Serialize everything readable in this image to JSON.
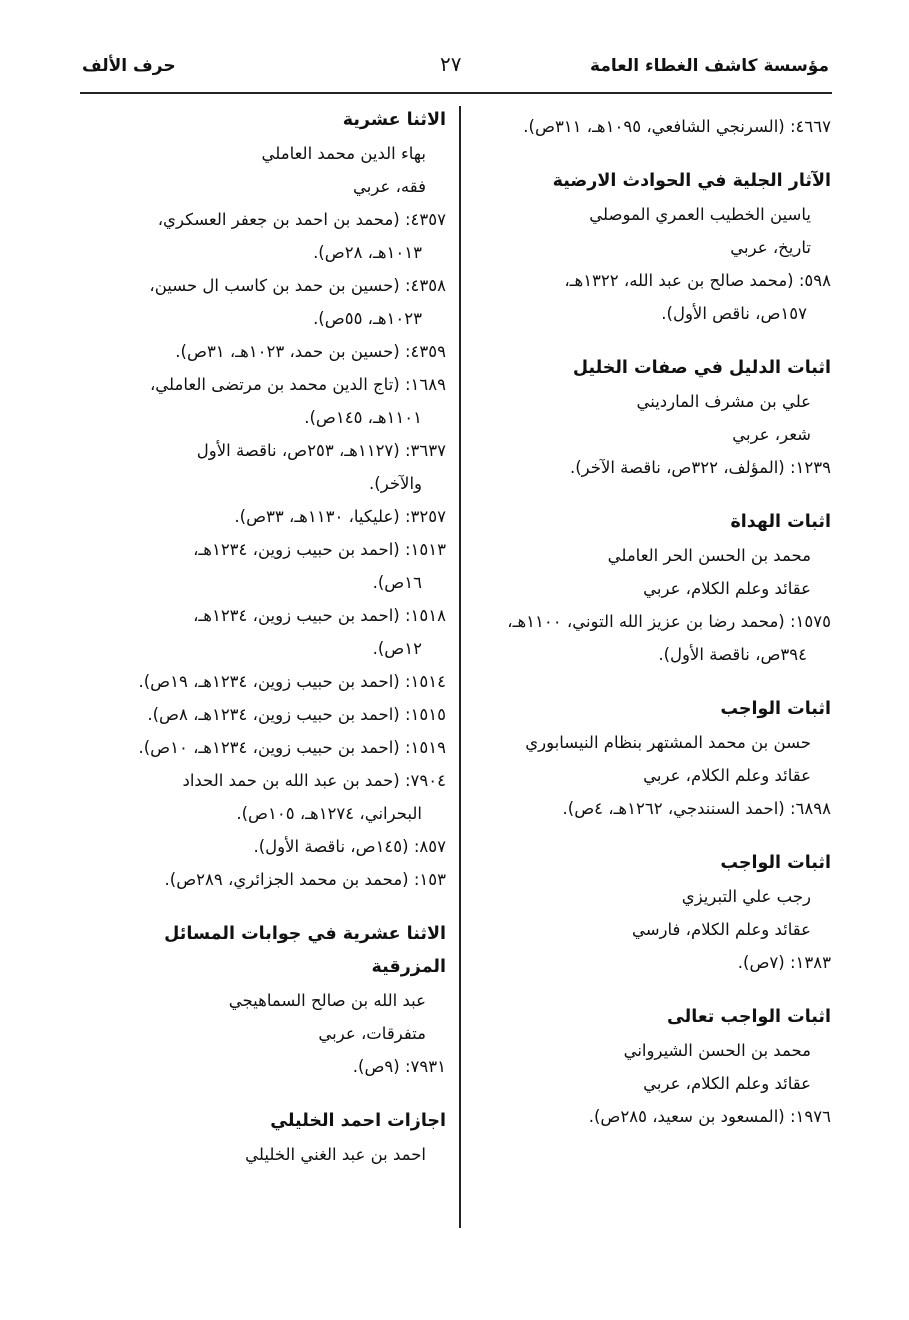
{
  "header": {
    "publisher": "مؤسسة كاشف الغطاء العامة",
    "page_number": "٢٧",
    "section": "حرف الألف"
  },
  "right_column": {
    "lead_record": "٤٦٦٧: (السرنجي الشافعي، ١٠٩٥هـ، ٣١١ص).",
    "entries": [
      {
        "title": "الآثار الجلية في الحوادث الارضية",
        "author": "ياسين الخطيب العمري الموصلي",
        "subject": "تاريخ، عربي",
        "records": [
          [
            "٥٩٨: (محمد صالح بن عبد الله، ١٣٢٢هـ،",
            "١٥٧ص، ناقص الأول)."
          ]
        ]
      },
      {
        "title": "اثبات الدليل في صفات الخليل",
        "author": "علي بن مشرف المارديني",
        "subject": "شعر، عربي",
        "records": [
          [
            "١٢٣٩: (المؤلف، ٣٢٢ص، ناقصة الآخر)."
          ]
        ]
      },
      {
        "title": "اثبات الهداة",
        "author": "محمد بن الحسن الحر العاملي",
        "subject": "عقائد وعلم الكلام، عربي",
        "records": [
          [
            "١٥٧٥: (محمد رضا بن عزيز الله التوني، ١١٠٠هـ،",
            "٣٩٤ص، ناقصة الأول)."
          ]
        ]
      },
      {
        "title": "اثبات الواجب",
        "author": "حسن بن محمد المشتهر بنظام النيسابوري",
        "subject": "عقائد وعلم الكلام، عربي",
        "records": [
          [
            "٦٨٩٨: (احمد السنندجي، ١٢٦٢هـ، ٤ص)."
          ]
        ]
      },
      {
        "title": "اثبات الواجب",
        "author": "رجب علي التبريزي",
        "subject": "عقائد وعلم الكلام، فارسي",
        "records": [
          [
            "١٣٨٣: (٧ص)."
          ]
        ]
      },
      {
        "title": "اثبات الواجب تعالى",
        "author": "محمد بن الحسن الشيرواني",
        "subject": "عقائد وعلم الكلام، عربي",
        "records": [
          [
            "١٩٧٦: (المسعود بن سعيد، ٢٨٥ص)."
          ]
        ]
      }
    ]
  },
  "left_column": {
    "entries": [
      {
        "title": "الاثنا عشرية",
        "author": "بهاء الدين محمد العاملي",
        "subject": "فقه، عربي",
        "records": [
          [
            "٤٣٥٧: (محمد بن احمد بن جعفر العسكري،",
            "١٠١٣هـ، ٢٨ص)."
          ],
          [
            "٤٣٥٨: (حسين بن حمد بن كاسب ال حسين،",
            "١٠٢٣هـ، ٥٥ص)."
          ],
          [
            "٤٣٥٩: (حسين بن حمد، ١٠٢٣هـ، ٣١ص)."
          ],
          [
            "١٦٨٩: (تاج الدين محمد بن مرتضى العاملي،",
            "١١٠١هـ، ١٤٥ص)."
          ],
          [
            "٣٦٣٧: (١١٢٧هـ، ٢٥٣ص، ناقصة الأول",
            "والآخر)."
          ],
          [
            "٣٢٥٧: (عليكيا، ١١٣٠هـ، ٣٣ص)."
          ],
          [
            "١٥١٣: (احمد بن حبيب زوين، ١٢٣٤هـ،",
            "١٦ص)."
          ],
          [
            "١٥١٨: (احمد بن حبيب زوين، ١٢٣٤هـ،",
            "١٢ص)."
          ],
          [
            "١٥١٤: (احمد بن حبيب زوين، ١٢٣٤هـ، ١٩ص)."
          ],
          [
            "١٥١٥: (احمد بن حبيب زوين، ١٢٣٤هـ، ٨ص)."
          ],
          [
            "١٥١٩: (احمد بن حبيب زوين، ١٢٣٤هـ، ١٠ص)."
          ],
          [
            "٧٩٠٤: (حمد بن عبد الله بن حمد الحداد",
            "البحراني، ١٢٧٤هـ، ١٠٥ص)."
          ],
          [
            "٨٥٧: (١٤٥ص، ناقصة الأول)."
          ],
          [
            "١٥٣: (محمد بن محمد الجزائري، ٢٨٩ص)."
          ]
        ]
      },
      {
        "title": "الاثنا عشرية في جوابات المسائل المزرقية",
        "author": "عبد الله بن صالح السماهيجي",
        "subject": "متفرقات، عربي",
        "records": [
          [
            "٧٩٣١: (٩ص)."
          ]
        ]
      },
      {
        "title": "اجازات احمد الخليلي",
        "author": "احمد بن عبد الغني الخليلي",
        "subject": "",
        "records": []
      }
    ]
  }
}
